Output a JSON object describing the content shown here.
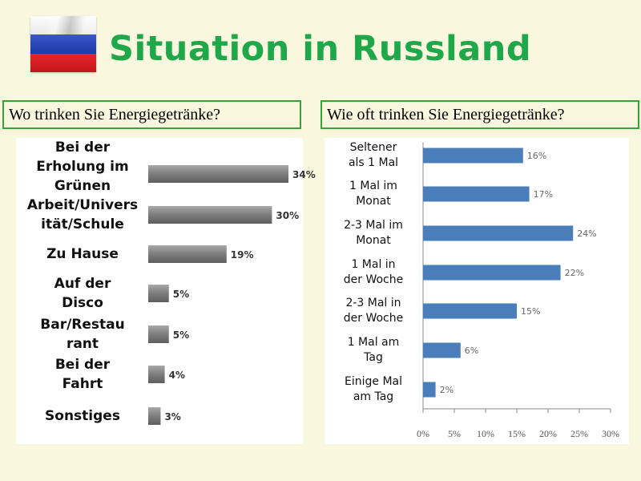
{
  "title": "Situation in Russland",
  "questions": {
    "left": "Wo trinken Sie Energiegetränke?",
    "right": "Wie oft trinken Sie Energiegetränke?"
  },
  "colors": {
    "title": "#1fa84a",
    "box_border": "#3aa13a",
    "left_bars": "#7f7f7f",
    "right_bars": "#4a7ebb"
  },
  "chart_data": [
    {
      "type": "bar",
      "orientation": "horizontal",
      "categories": [
        "Bei der\nErholung im\nGrünen",
        "Arbeit/Univers\nität/Schule",
        "Zu Hause",
        "Auf der\nDisco",
        "Bar/Restau\nrant",
        "Bei der\nFahrt",
        "Sonstiges"
      ],
      "values": [
        34,
        30,
        19,
        5,
        5,
        4,
        3
      ],
      "data_labels": [
        "34%",
        "30%",
        "19%",
        "5%",
        "5%",
        "4%",
        "3%"
      ],
      "xlim": [
        0,
        34
      ],
      "grid": false
    },
    {
      "type": "bar",
      "orientation": "horizontal",
      "categories": [
        "Seltener\nals 1 Mal",
        "1 Mal im\nMonat",
        "2-3 Mal im\nMonat",
        "1 Mal in\nder Woche",
        "2-3 Mal in\nder Woche",
        "1 Mal am\nTag",
        "Einige Mal\nam Tag"
      ],
      "values": [
        16,
        17,
        24,
        22,
        15,
        6,
        2
      ],
      "data_labels": [
        "16%",
        "17%",
        "24%",
        "22%",
        "15%",
        "6%",
        "2%"
      ],
      "xticks": [
        "0%",
        "5%",
        "10%",
        "15%",
        "20%",
        "25%",
        "30%"
      ],
      "xlim": [
        0,
        30
      ],
      "grid": false
    }
  ]
}
